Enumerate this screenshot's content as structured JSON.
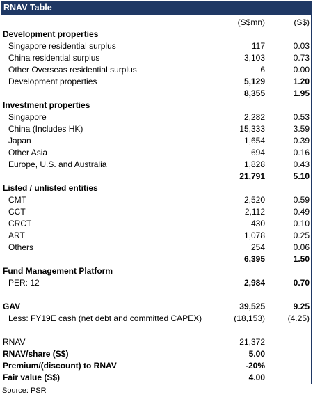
{
  "title": "RNAV Table",
  "col_headers": {
    "c1": "(S$mn)",
    "c2": "(S$)"
  },
  "rows": [
    {
      "label": "Development properties",
      "type": "section"
    },
    {
      "label": "Singapore residential surplus",
      "v1": "117",
      "v2": "0.03",
      "indent": true
    },
    {
      "label": "China residential surplus",
      "v1": "3,103",
      "v2": "0.73",
      "indent": true
    },
    {
      "label": "Other Overseas residential surplus",
      "v1": "6",
      "v2": "0.00",
      "indent": true
    },
    {
      "label": "Development properties",
      "v1": "5,129",
      "v2": "1.20",
      "indent": true,
      "bold_vals": true
    },
    {
      "label": "",
      "v1": "8,355",
      "v2": "1.95",
      "total": true
    },
    {
      "label": "Investment properties",
      "type": "section"
    },
    {
      "label": "Singapore",
      "v1": "2,282",
      "v2": "0.53",
      "indent": true
    },
    {
      "label": "China (Includes HK)",
      "v1": "15,333",
      "v2": "3.59",
      "indent": true
    },
    {
      "label": "Japan",
      "v1": "1,654",
      "v2": "0.39",
      "indent": true
    },
    {
      "label": "Other Asia",
      "v1": "694",
      "v2": "0.16",
      "indent": true
    },
    {
      "label": "Europe, U.S. and Australia",
      "v1": "1,828",
      "v2": "0.43",
      "indent": true
    },
    {
      "label": "",
      "v1": "21,791",
      "v2": "5.10",
      "total": true
    },
    {
      "label": "Listed / unlisted entities",
      "type": "section"
    },
    {
      "label": "CMT",
      "v1": "2,520",
      "v2": "0.59",
      "indent": true
    },
    {
      "label": "CCT",
      "v1": "2,112",
      "v2": "0.49",
      "indent": true
    },
    {
      "label": "CRCT",
      "v1": "430",
      "v2": "0.10",
      "indent": true
    },
    {
      "label": "ART",
      "v1": "1,078",
      "v2": "0.25",
      "indent": true
    },
    {
      "label": "Others",
      "v1": "254",
      "v2": "0.06",
      "indent": true
    },
    {
      "label": "",
      "v1": "6,395",
      "v2": "1.50",
      "total": true
    },
    {
      "label": "Fund Management Platform",
      "type": "section"
    },
    {
      "label": "PER: 12",
      "v1": "2,984",
      "v2": "0.70",
      "indent": true,
      "bold_vals": true
    },
    {
      "label": "",
      "type": "blank"
    },
    {
      "label": "GAV",
      "v1": "39,525",
      "v2": "9.25",
      "type": "section"
    },
    {
      "label": "Less: FY19E cash (net debt and committed CAPEX)",
      "v1": "(18,153)",
      "v2": "(4.25)",
      "indent": true
    },
    {
      "label": "",
      "type": "blank"
    },
    {
      "label": "RNAV",
      "v1": "21,372",
      "v2": ""
    },
    {
      "label": "RNAV/share (S$)",
      "v1": "5.00",
      "v2": "",
      "bold_all": true
    },
    {
      "label": "Premium/(discount) to RNAV",
      "v1": "-20%",
      "v2": "",
      "bold_all": true
    },
    {
      "label": "Fair value (S$)",
      "v1": "4.00",
      "v2": "",
      "bold_all": true
    }
  ],
  "source": "Source: PSR"
}
